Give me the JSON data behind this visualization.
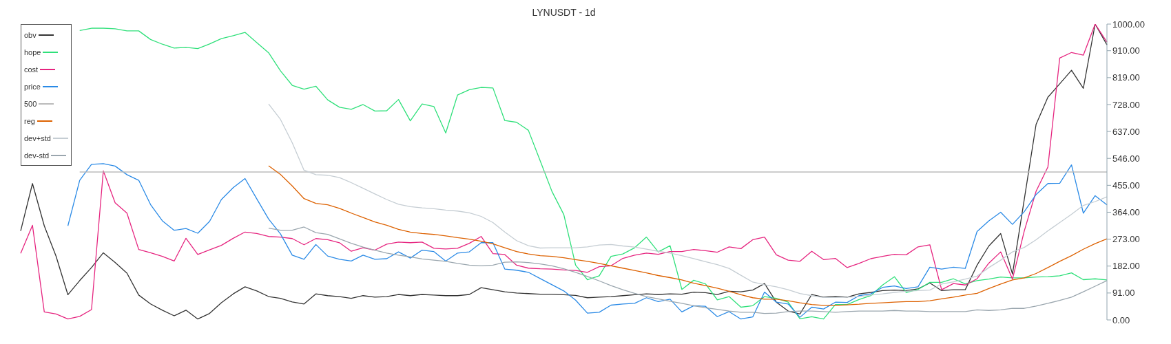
{
  "chart_data": {
    "type": "line",
    "title": "LYNUSDT - 1d",
    "categories": [
      null,
      null,
      null,
      null,
      null,
      null,
      null,
      null,
      null,
      null,
      null,
      null,
      null,
      null,
      null,
      null,
      null,
      null,
      null,
      null,
      null,
      null,
      null,
      null,
      null,
      null,
      null,
      null,
      null,
      null,
      null,
      null,
      null,
      null,
      null,
      null,
      null,
      null,
      null,
      null,
      null,
      null,
      null,
      null,
      null,
      null,
      null,
      null,
      null,
      null,
      null,
      null,
      null,
      null,
      null,
      null,
      null,
      null,
      null,
      null,
      null,
      null,
      null,
      null,
      null,
      null,
      null,
      null,
      null,
      null,
      null,
      null,
      null,
      null,
      null,
      null,
      null,
      null,
      null,
      null,
      null,
      null,
      null,
      null,
      null,
      null,
      null,
      null,
      null,
      null,
      null,
      null,
      null
    ],
    "series": [
      {
        "name": "obv",
        "color": "#333333",
        "values": [
          301,
          461,
          318,
          215,
          85,
          133,
          177,
          227,
          194,
          158,
          84,
          54,
          33,
          14,
          33,
          3,
          22,
          58,
          88,
          112,
          98,
          79,
          73,
          61,
          54,
          88,
          82,
          79,
          73,
          82,
          77,
          79,
          86,
          82,
          86,
          84,
          82,
          82,
          86,
          109,
          102,
          95,
          91,
          89,
          87,
          87,
          85,
          83,
          75,
          77,
          79,
          82,
          85,
          88,
          86,
          88,
          87,
          94,
          92,
          86,
          97,
          95,
          101,
          123,
          60,
          30,
          20,
          86,
          77,
          80,
          77,
          88,
          93,
          99,
          101,
          99,
          105,
          125,
          99,
          102,
          102,
          185,
          250,
          292,
          155,
          408,
          661,
          753,
          798,
          844,
          783,
          1000,
          930
        ]
      },
      {
        "name": "hope",
        "color": "#2fe07a",
        "values": [
          null,
          null,
          null,
          null,
          null,
          978,
          986,
          986,
          984,
          977,
          977,
          948,
          932,
          919,
          921,
          917,
          933,
          951,
          961,
          972,
          937,
          903,
          842,
          793,
          780,
          790,
          744,
          719,
          712,
          728,
          706,
          707,
          745,
          673,
          730,
          721,
          632,
          760,
          778,
          786,
          784,
          674,
          668,
          641,
          538,
          434,
          356,
          185,
          136,
          149,
          215,
          223,
          244,
          280,
          230,
          251,
          103,
          134,
          122,
          68,
          79,
          43,
          48,
          79,
          73,
          60,
          4,
          11,
          3,
          52,
          52,
          69,
          82,
          118,
          146,
          93,
          103,
          127,
          127,
          139,
          122,
          133,
          138,
          145,
          142,
          142,
          145,
          146,
          149,
          159,
          136,
          139,
          135
        ]
      },
      {
        "name": "cost",
        "color": "#e6247f",
        "values": [
          225,
          320,
          27,
          20,
          3,
          12,
          35,
          504,
          396,
          361,
          238,
          227,
          215,
          199,
          276,
          221,
          237,
          252,
          276,
          297,
          292,
          282,
          280,
          275,
          254,
          275,
          271,
          261,
          232,
          244,
          236,
          256,
          263,
          261,
          263,
          242,
          240,
          242,
          259,
          282,
          224,
          221,
          185,
          175,
          173,
          172,
          169,
          167,
          161,
          180,
          183,
          208,
          219,
          226,
          222,
          231,
          231,
          238,
          234,
          229,
          247,
          241,
          271,
          280,
          220,
          202,
          198,
          232,
          204,
          208,
          177,
          191,
          207,
          215,
          222,
          220,
          247,
          254,
          102,
          123,
          118,
          139,
          192,
          230,
          138,
          301,
          435,
          517,
          885,
          904,
          895,
          1000,
          939
        ]
      },
      {
        "name": "price",
        "color": "#2a8ae6",
        "values": [
          null,
          null,
          null,
          null,
          318,
          472,
          526,
          528,
          520,
          491,
          472,
          390,
          335,
          303,
          309,
          293,
          333,
          407,
          447,
          478,
          409,
          341,
          291,
          219,
          205,
          255,
          216,
          205,
          199,
          219,
          205,
          207,
          230,
          209,
          236,
          231,
          199,
          226,
          230,
          261,
          261,
          172,
          168,
          161,
          140,
          119,
          98,
          67,
          23,
          26,
          50,
          54,
          56,
          75,
          62,
          70,
          27,
          48,
          46,
          11,
          28,
          3,
          10,
          94,
          60,
          54,
          9,
          43,
          37,
          60,
          59,
          82,
          88,
          110,
          115,
          106,
          112,
          178,
          172,
          178,
          174,
          299,
          335,
          364,
          323,
          366,
          424,
          461,
          462,
          524,
          361,
          420,
          389
        ]
      },
      {
        "name": "500",
        "color": "#bbbbbb",
        "values": [
          null,
          null,
          null,
          null,
          null,
          500,
          500,
          500,
          500,
          500,
          500,
          500,
          500,
          500,
          500,
          500,
          500,
          500,
          500,
          500,
          500,
          500,
          500,
          500,
          500,
          500,
          500,
          500,
          500,
          500,
          500,
          500,
          500,
          500,
          500,
          500,
          500,
          500,
          500,
          500,
          500,
          500,
          500,
          500,
          500,
          500,
          500,
          500,
          500,
          500,
          500,
          500,
          500,
          500,
          500,
          500,
          500,
          500,
          500,
          500,
          500,
          500,
          500,
          500,
          500,
          500,
          500,
          500,
          500,
          500,
          500,
          500,
          500,
          500,
          500,
          500,
          500,
          500,
          500,
          500,
          500,
          500,
          500,
          500,
          500,
          500,
          500,
          500,
          500,
          500,
          500,
          500,
          500
        ]
      },
      {
        "name": "reg",
        "color": "#dd6100",
        "values": [
          null,
          null,
          null,
          null,
          null,
          null,
          null,
          null,
          null,
          null,
          null,
          null,
          null,
          null,
          null,
          null,
          null,
          null,
          null,
          null,
          null,
          521,
          492,
          453,
          410,
          394,
          389,
          377,
          361,
          346,
          331,
          320,
          306,
          297,
          292,
          289,
          284,
          278,
          273,
          266,
          257,
          244,
          231,
          223,
          217,
          215,
          210,
          204,
          198,
          191,
          183,
          175,
          167,
          159,
          150,
          143,
          135,
          124,
          116,
          107,
          97,
          85,
          75,
          70,
          70,
          65,
          58,
          52,
          49,
          49,
          51,
          53,
          56,
          58,
          60,
          62,
          62,
          65,
          71,
          77,
          84,
          90,
          106,
          121,
          135,
          142,
          157,
          177,
          198,
          217,
          239,
          258,
          274
        ]
      },
      {
        "name": "dev+std",
        "color": "#c5cdd3",
        "values": [
          null,
          null,
          null,
          null,
          null,
          null,
          null,
          null,
          null,
          null,
          null,
          null,
          null,
          null,
          null,
          null,
          null,
          null,
          null,
          null,
          null,
          730,
          678,
          599,
          506,
          491,
          489,
          481,
          464,
          445,
          426,
          407,
          391,
          383,
          379,
          376,
          371,
          368,
          362,
          350,
          329,
          297,
          268,
          251,
          243,
          244,
          244,
          244,
          247,
          253,
          255,
          250,
          246,
          239,
          232,
          226,
          217,
          207,
          197,
          187,
          174,
          151,
          128,
          119,
          112,
          102,
          89,
          82,
          76,
          76,
          77,
          79,
          84,
          88,
          93,
          97,
          99,
          101,
          121,
          129,
          138,
          148,
          177,
          202,
          230,
          245,
          271,
          301,
          329,
          357,
          387,
          400,
          416
        ]
      },
      {
        "name": "dev-std",
        "color": "#9aa6ae",
        "values": [
          null,
          null,
          null,
          null,
          null,
          null,
          null,
          null,
          null,
          null,
          null,
          null,
          null,
          null,
          null,
          null,
          null,
          null,
          null,
          null,
          null,
          310,
          303,
          303,
          314,
          295,
          289,
          274,
          259,
          246,
          236,
          226,
          219,
          213,
          206,
          202,
          198,
          191,
          185,
          183,
          185,
          195,
          196,
          194,
          189,
          183,
          173,
          161,
          147,
          132,
          116,
          102,
          90,
          79,
          71,
          63,
          56,
          48,
          41,
          36,
          30,
          26,
          26,
          22,
          23,
          28,
          30,
          30,
          28,
          26,
          28,
          30,
          30,
          30,
          32,
          30,
          30,
          28,
          28,
          28,
          28,
          34,
          32,
          34,
          39,
          39,
          47,
          56,
          66,
          77,
          95,
          114,
          133
        ]
      }
    ],
    "ylim": [
      0,
      1000
    ],
    "yticks": [
      {
        "value": 0,
        "label": "0.00"
      },
      {
        "value": 91,
        "label": "91.00"
      },
      {
        "value": 182,
        "label": "182.00"
      },
      {
        "value": 273,
        "label": "273.00"
      },
      {
        "value": 364,
        "label": "364.00"
      },
      {
        "value": 455,
        "label": "455.00"
      },
      {
        "value": 546,
        "label": "546.00"
      },
      {
        "value": 637,
        "label": "637.00"
      },
      {
        "value": 728,
        "label": "728.00"
      },
      {
        "value": 819,
        "label": "819.00"
      },
      {
        "value": 910,
        "label": "910.00"
      },
      {
        "value": 1000,
        "label": "1000.00"
      }
    ],
    "tick_labels": "y",
    "legend": "top left",
    "marker": "none"
  }
}
